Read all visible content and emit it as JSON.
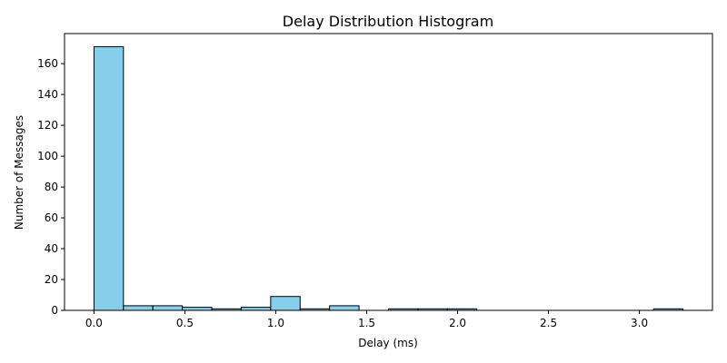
{
  "chart_data": {
    "type": "bar",
    "title": "Delay Distribution Histogram",
    "xlabel": "Delay (ms)",
    "ylabel": "Number of Messages",
    "xlim": [
      -0.162,
      3.402
    ],
    "ylim": [
      0,
      179.5
    ],
    "xticks": [
      0.0,
      0.5,
      1.0,
      1.5,
      2.0,
      2.5,
      3.0
    ],
    "xtick_labels": [
      "0.0",
      "0.5",
      "1.0",
      "1.5",
      "2.0",
      "2.5",
      "3.0"
    ],
    "yticks": [
      0,
      20,
      40,
      60,
      80,
      100,
      120,
      140,
      160
    ],
    "ytick_labels": [
      "0",
      "20",
      "40",
      "60",
      "80",
      "100",
      "120",
      "140",
      "160"
    ],
    "bin_width": 0.162,
    "bin_edges": [
      0.0,
      0.162,
      0.324,
      0.486,
      0.648,
      0.81,
      0.972,
      1.134,
      1.296,
      1.458,
      1.62,
      1.782,
      1.944,
      2.106,
      2.268,
      2.43,
      2.592,
      2.754,
      2.916,
      3.078,
      3.24
    ],
    "values": [
      171,
      3,
      3,
      2,
      1,
      2,
      9,
      1,
      3,
      0,
      1,
      1,
      1,
      0,
      0,
      0,
      0,
      0,
      0,
      1
    ],
    "bar_color": "#87ceeb",
    "edge_color": "#000000",
    "grid": false,
    "legend": "none"
  }
}
